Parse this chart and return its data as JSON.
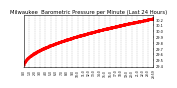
{
  "title": "Milwaukee  Barometric Pressure per Minute (Last 24 Hours)",
  "title_fontsize": 3.8,
  "background_color": "#ffffff",
  "plot_bg_color": "#ffffff",
  "grid_color": "#aaaaaa",
  "line_color": "#ff0000",
  "marker": ".",
  "markersize": 0.9,
  "ylim": [
    29.38,
    30.28
  ],
  "yticks": [
    29.4,
    29.5,
    29.6,
    29.7,
    29.8,
    29.9,
    30.0,
    30.1,
    30.2
  ],
  "ytick_labels": [
    "29.4",
    "29.5",
    "29.6",
    "29.7",
    "29.8",
    "29.9",
    "30.0",
    "30.1",
    "30.2"
  ],
  "ytick_fontsize": 2.5,
  "xtick_fontsize": 2.2,
  "num_points": 1440,
  "pressure_start": 29.42,
  "pressure_end": 30.22,
  "x_tick_positions": [
    0,
    60,
    120,
    180,
    240,
    300,
    360,
    420,
    480,
    540,
    600,
    660,
    720,
    780,
    840,
    900,
    960,
    1020,
    1080,
    1140,
    1200,
    1260,
    1320,
    1380,
    1439
  ],
  "x_tick_labels": [
    "0:0",
    "1:0",
    "2:0",
    "3:0",
    "4:0",
    "5:0",
    "6:0",
    "7:0",
    "8:0",
    "9:0",
    "10:0",
    "11:0",
    "12:0",
    "13:0",
    "14:0",
    "15:0",
    "16:0",
    "17:0",
    "18:0",
    "19:0",
    "20:0",
    "21:0",
    "22:0",
    "23:0",
    "23:59"
  ],
  "vgrid_positions": [
    60,
    120,
    180,
    240,
    300,
    360,
    420,
    480,
    540,
    600,
    660,
    720,
    780,
    840,
    900,
    960,
    1020,
    1080,
    1140,
    1200,
    1260,
    1320,
    1380
  ]
}
